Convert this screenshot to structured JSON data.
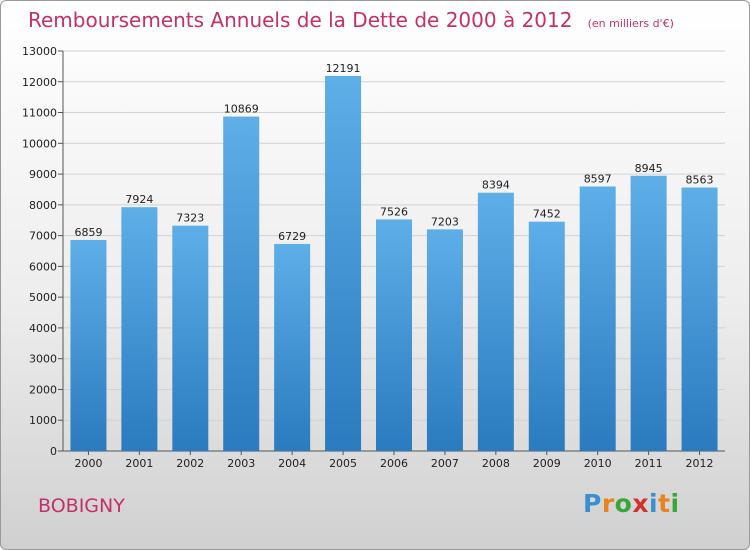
{
  "title": "Remboursements Annuels de la Dette de 2000 à 2012",
  "unit": "(en milliers d'€)",
  "commune": "BOBIGNY",
  "logo": {
    "text": "Proxiti",
    "letter_colors": [
      "#3a8fd0",
      "#e8831f",
      "#3aa63a",
      "#d4312b",
      "#3a8fd0",
      "#e8831f",
      "#3aa63a"
    ]
  },
  "colors": {
    "bar_top": "#5eaee8",
    "bar_bottom": "#2a7bbf",
    "title": "#c4306a"
  },
  "chart_data": {
    "type": "bar",
    "categories": [
      "2000",
      "2001",
      "2002",
      "2003",
      "2004",
      "2005",
      "2006",
      "2007",
      "2008",
      "2009",
      "2010",
      "2011",
      "2012"
    ],
    "values": [
      6859,
      7924,
      7323,
      10869,
      6729,
      12191,
      7526,
      7203,
      8394,
      7452,
      8597,
      8945,
      8563
    ],
    "ylim": [
      0,
      13000
    ],
    "yticks": [
      0,
      1000,
      2000,
      3000,
      4000,
      5000,
      6000,
      7000,
      8000,
      9000,
      10000,
      11000,
      12000,
      13000
    ],
    "grid": true,
    "data_labels": true
  }
}
